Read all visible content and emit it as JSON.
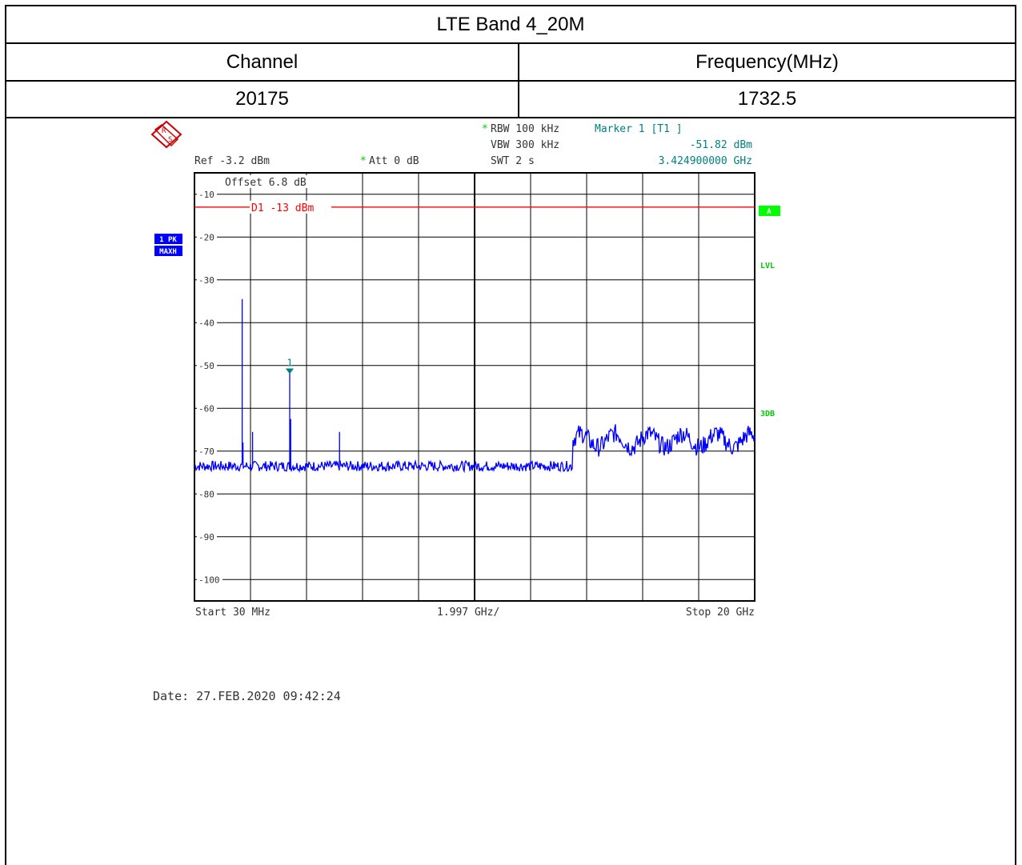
{
  "table": {
    "title": "LTE Band 4_20M",
    "col1_header": "Channel",
    "col2_header": "Frequency(MHz)",
    "channel": "20175",
    "frequency": "1732.5"
  },
  "analyzer": {
    "rbw": "RBW 100 kHz",
    "vbw": "VBW 300 kHz",
    "swt": "SWT 2 s",
    "marker_title": "Marker 1 [T1 ]",
    "marker_level": "-51.82 dBm",
    "marker_freq": "3.424900000 GHz",
    "ref": "Ref -3.2 dBm",
    "att": "Att  0 dB",
    "offset_a": "Off",
    "offset_b": "set  6.",
    "offset_c": " dB",
    "star": "*",
    "trace_label_1": "1 PK",
    "trace_label_2": "MAXH",
    "side_a": "A",
    "side_lvl": "LVL",
    "side_3db": "3DB",
    "limit_label": "D1 -13 dBm",
    "start": "Start 30 MHz",
    "span_div": "1.997 GHz/",
    "stop": "Stop 20 GHz",
    "marker_num": "1",
    "date": "Date: 27.FEB.2020  09:42:24"
  },
  "colors": {
    "trace": "#0000ff",
    "limit": "#ff0000",
    "marker": "#008080",
    "badge_bg": "#0000ff",
    "side_green": "#00ff00"
  },
  "icons": [
    "rohde-schwarz-logo-icon",
    "marker-triangle-icon"
  ],
  "chart_data": {
    "type": "line",
    "x_unit": "GHz",
    "y_unit": "dBm",
    "xlim": [
      0.03,
      20
    ],
    "ylim": [
      -105,
      -5
    ],
    "y_ticks": [
      -10,
      -20,
      -30,
      -40,
      -50,
      -60,
      -70,
      -80,
      -90,
      -100
    ],
    "y_tick_labels": [
      "-10",
      "-20",
      "-30",
      "-40",
      "-50",
      "-60",
      "-70",
      "-80",
      "-90",
      "-100"
    ],
    "grid": true,
    "limit_line": {
      "label": "D1 -13 dBm",
      "value": -13
    },
    "marker": {
      "label": "1",
      "x": 3.4249,
      "y": -51.82
    },
    "noise_segments": [
      {
        "x_start": 0.03,
        "x_end": 13.5,
        "level": -73.5,
        "jitter": 1.2
      },
      {
        "x_start": 13.5,
        "x_end": 20,
        "level": -67.5,
        "jitter": 2.2
      }
    ],
    "spurs": [
      {
        "x": 1.73,
        "y": -34.5
      },
      {
        "x": 1.76,
        "y": -68
      },
      {
        "x": 2.1,
        "y": -65.5
      },
      {
        "x": 3.4249,
        "y": -51.82
      },
      {
        "x": 3.46,
        "y": -62.5
      },
      {
        "x": 5.2,
        "y": -65.5
      }
    ]
  }
}
